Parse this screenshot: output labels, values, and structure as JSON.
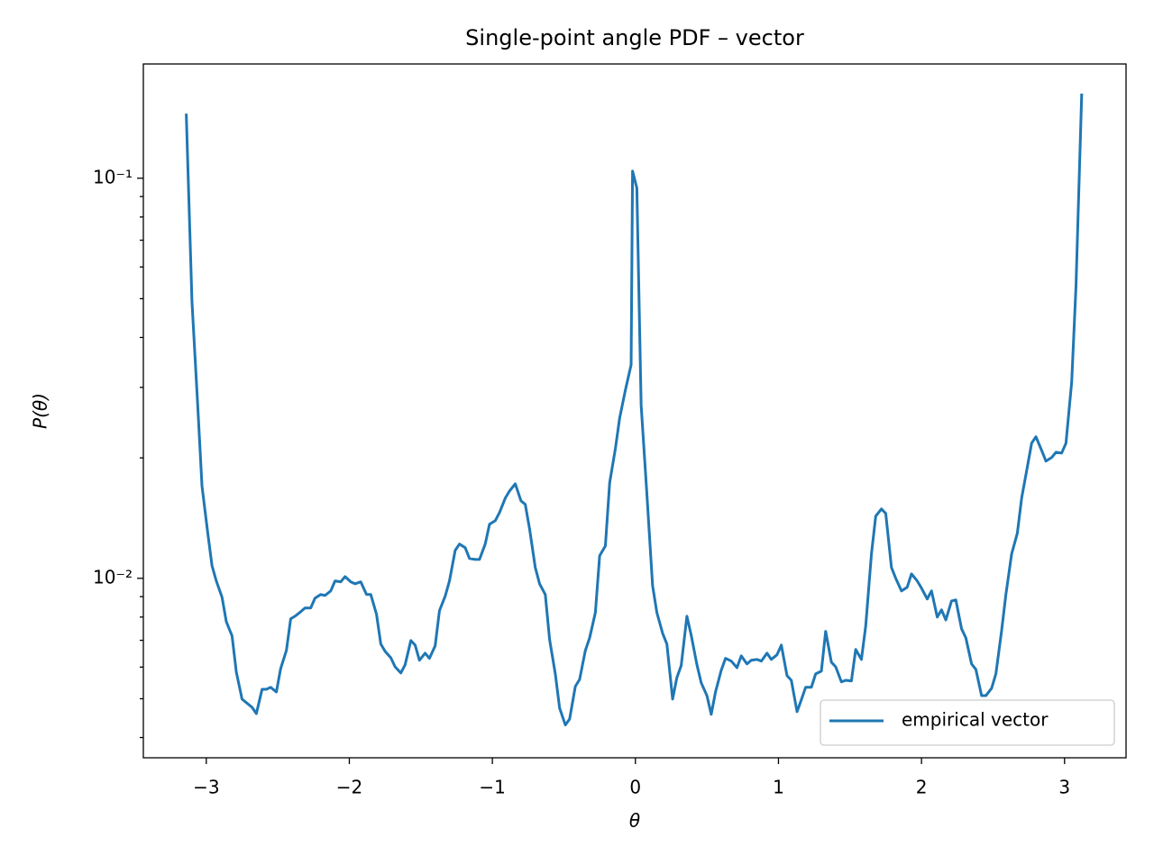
{
  "chart_data": {
    "type": "line",
    "title": "Single-point angle PDF – vector",
    "xlabel": "θ",
    "ylabel": "P(θ)",
    "yscale": "log",
    "legend_loc": "lower right",
    "xlim": [
      -3.44,
      3.43
    ],
    "ylim": [
      0.00356,
      0.193
    ],
    "xticks": [
      {
        "value": -3,
        "label": "−3"
      },
      {
        "value": -2,
        "label": "−2"
      },
      {
        "value": -1,
        "label": "−1"
      },
      0,
      1,
      2,
      3
    ],
    "yticks": [
      {
        "value": 0.01,
        "label": "10⁻²"
      },
      {
        "value": 0.1,
        "label": "10⁻¹"
      }
    ],
    "yminorticks": [
      0.004,
      0.005,
      0.006,
      0.007,
      0.008,
      0.009,
      0.02,
      0.03,
      0.04,
      0.05,
      0.06,
      0.07,
      0.08,
      0.09
    ],
    "x": [
      -3.14,
      -3.1,
      -3.06,
      -3.03,
      -2.99,
      -2.96,
      -2.93,
      -2.89,
      -2.86,
      -2.82,
      -2.79,
      -2.75,
      -2.72,
      -2.68,
      -2.65,
      -2.61,
      -2.58,
      -2.55,
      -2.51,
      -2.48,
      -2.44,
      -2.41,
      -2.38,
      -2.34,
      -2.31,
      -2.27,
      -2.24,
      -2.2,
      -2.17,
      -2.13,
      -2.1,
      -2.06,
      -2.03,
      -1.99,
      -1.96,
      -1.92,
      -1.88,
      -1.85,
      -1.81,
      -1.78,
      -1.75,
      -1.71,
      -1.68,
      -1.64,
      -1.61,
      -1.57,
      -1.54,
      -1.51,
      -1.47,
      -1.44,
      -1.4,
      -1.37,
      -1.33,
      -1.3,
      -1.26,
      -1.23,
      -1.19,
      -1.16,
      -1.12,
      -1.09,
      -1.05,
      -1.02,
      -0.98,
      -0.95,
      -0.91,
      -0.88,
      -0.84,
      -0.8,
      -0.77,
      -0.74,
      -0.7,
      -0.67,
      -0.63,
      -0.6,
      -0.56,
      -0.53,
      -0.49,
      -0.46,
      -0.42,
      -0.39,
      -0.35,
      -0.32,
      -0.28,
      -0.25,
      -0.21,
      -0.18,
      -0.14,
      -0.11,
      -0.07,
      -0.03,
      -0.02,
      0.01,
      0.04,
      0.08,
      0.12,
      0.15,
      0.19,
      0.22,
      0.26,
      0.29,
      0.32,
      0.36,
      0.39,
      0.43,
      0.46,
      0.5,
      0.53,
      0.56,
      0.6,
      0.63,
      0.67,
      0.71,
      0.74,
      0.78,
      0.81,
      0.85,
      0.88,
      0.92,
      0.95,
      0.99,
      1.02,
      1.06,
      1.09,
      1.13,
      1.16,
      1.19,
      1.23,
      1.26,
      1.3,
      1.33,
      1.37,
      1.4,
      1.44,
      1.47,
      1.51,
      1.54,
      1.58,
      1.61,
      1.65,
      1.68,
      1.72,
      1.75,
      1.79,
      1.82,
      1.86,
      1.9,
      1.93,
      1.97,
      2.0,
      2.04,
      2.07,
      2.11,
      2.14,
      2.17,
      2.21,
      2.24,
      2.28,
      2.31,
      2.35,
      2.38,
      2.42,
      2.45,
      2.49,
      2.52,
      2.56,
      2.59,
      2.63,
      2.67,
      2.7,
      2.73,
      2.77,
      2.8,
      2.84,
      2.87,
      2.91,
      2.94,
      2.98,
      3.01,
      3.05,
      3.08,
      3.12
    ],
    "series": [
      {
        "name": "empirical vector",
        "color": "#1f77b4",
        "values": [
          0.145,
          0.0491,
          0.0271,
          0.017,
          0.013,
          0.01075,
          0.00985,
          0.00897,
          0.00779,
          0.00718,
          0.00583,
          0.00499,
          0.00489,
          0.00476,
          0.00459,
          0.00528,
          0.00528,
          0.00534,
          0.0052,
          0.00595,
          0.0066,
          0.00792,
          0.00804,
          0.00825,
          0.00843,
          0.00843,
          0.00892,
          0.00911,
          0.00906,
          0.0093,
          0.00985,
          0.0098,
          0.0101,
          0.0098,
          0.00969,
          0.0098,
          0.00911,
          0.00911,
          0.00813,
          0.00685,
          0.00657,
          0.00633,
          0.00601,
          0.0058,
          0.00608,
          0.00699,
          0.00681,
          0.00624,
          0.0065,
          0.00631,
          0.00678,
          0.0083,
          0.00902,
          0.00985,
          0.01174,
          0.01218,
          0.01193,
          0.01121,
          0.01115,
          0.01115,
          0.01218,
          0.01365,
          0.01393,
          0.0146,
          0.01586,
          0.01653,
          0.01723,
          0.01562,
          0.0153,
          0.0133,
          0.01064,
          0.00969,
          0.00911,
          0.00703,
          0.00577,
          0.00474,
          0.0043,
          0.00445,
          0.00537,
          0.00559,
          0.0066,
          0.0071,
          0.00821,
          0.01139,
          0.01205,
          0.01733,
          0.0211,
          0.02518,
          0.02956,
          0.03418,
          0.1042,
          0.0945,
          0.0271,
          0.01628,
          0.00959,
          0.00821,
          0.00729,
          0.00685,
          0.00499,
          0.00565,
          0.00605,
          0.00804,
          0.00721,
          0.00608,
          0.00548,
          0.00509,
          0.00457,
          0.0052,
          0.00589,
          0.00631,
          0.00621,
          0.00598,
          0.0064,
          0.00611,
          0.00624,
          0.00627,
          0.00621,
          0.0065,
          0.00627,
          0.00644,
          0.00681,
          0.00571,
          0.00556,
          0.00464,
          0.00497,
          0.00534,
          0.00534,
          0.00577,
          0.00586,
          0.00737,
          0.00617,
          0.00601,
          0.00551,
          0.00556,
          0.00554,
          0.00664,
          0.00627,
          0.0076,
          0.0115,
          0.0143,
          0.01491,
          0.01452,
          0.01064,
          0.01,
          0.0093,
          0.0095,
          0.01026,
          0.00985,
          0.00945,
          0.00888,
          0.0093,
          0.008,
          0.00834,
          0.00787,
          0.00878,
          0.00883,
          0.00748,
          0.0071,
          0.00611,
          0.00592,
          0.00509,
          0.00509,
          0.00531,
          0.00577,
          0.0074,
          0.00911,
          0.0115,
          0.01297,
          0.01586,
          0.01815,
          0.02177,
          0.02258,
          0.02088,
          0.01963,
          0.02004,
          0.02066,
          0.02056,
          0.02177,
          0.03097,
          0.05368,
          0.1628
        ]
      }
    ]
  }
}
